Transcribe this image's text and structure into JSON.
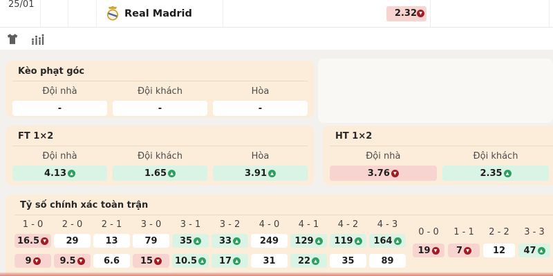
{
  "header": {
    "date": "25/01",
    "team_name": "Real Madrid",
    "odd": {
      "v": "2.32",
      "t": "down"
    }
  },
  "toolbar": {
    "icons": [
      "jersey-icon",
      "stats-chart-icon"
    ]
  },
  "sections": {
    "corner": {
      "title": "Kèo phạt góc",
      "columns": [
        "Đội nhà",
        "Đội khách",
        "Hòa"
      ],
      "cells": [
        {
          "v": "-",
          "t": "flat"
        },
        {
          "v": "-",
          "t": "flat"
        },
        {
          "v": "-",
          "t": "flat"
        }
      ]
    },
    "ft": {
      "title": "FT 1×2",
      "columns": [
        "Đội nhà",
        "Đội khách",
        "Hòa"
      ],
      "cells": [
        {
          "v": "4.13",
          "t": "up"
        },
        {
          "v": "1.65",
          "t": "up"
        },
        {
          "v": "3.91",
          "t": "up"
        }
      ]
    },
    "ht": {
      "title": "HT 1×2",
      "columns": [
        "Đội nhà",
        "Đội khách",
        ""
      ],
      "cells": [
        {
          "v": "3.76",
          "t": "down"
        },
        {
          "v": "2.35",
          "t": "up"
        },
        {
          "v": "",
          "t": "down"
        }
      ]
    },
    "correct_score": {
      "title": "Tỷ số chính xác toàn trận",
      "scores": [
        "1 - 0",
        "2 - 0",
        "2 - 1",
        "3 - 0",
        "3 - 1",
        "3 - 2",
        "4 - 0",
        "4 - 1",
        "4 - 2",
        "4 - 3"
      ],
      "row1": [
        {
          "v": "16.5",
          "t": "down"
        },
        {
          "v": "29",
          "t": "flat"
        },
        {
          "v": "13",
          "t": "flat"
        },
        {
          "v": "79",
          "t": "flat"
        },
        {
          "v": "35",
          "t": "up"
        },
        {
          "v": "33",
          "t": "up"
        },
        {
          "v": "249",
          "t": "flat"
        },
        {
          "v": "129",
          "t": "up"
        },
        {
          "v": "119",
          "t": "up"
        },
        {
          "v": "164",
          "t": "up"
        }
      ],
      "row2": [
        {
          "v": "9",
          "t": "down"
        },
        {
          "v": "9.5",
          "t": "down"
        },
        {
          "v": "6.6",
          "t": "flat"
        },
        {
          "v": "15",
          "t": "down"
        },
        {
          "v": "10.5",
          "t": "up"
        },
        {
          "v": "17",
          "t": "up"
        },
        {
          "v": "31",
          "t": "flat"
        },
        {
          "v": "22",
          "t": "up"
        },
        {
          "v": "35",
          "t": "flat"
        },
        {
          "v": "89",
          "t": "flat"
        }
      ],
      "draw_scores": [
        "0 - 0",
        "1 - 1",
        "2 - 2",
        "3 - 3"
      ],
      "draw_values": [
        {
          "v": "19",
          "t": "down"
        },
        {
          "v": "7",
          "t": "down"
        },
        {
          "v": "12",
          "t": "flat"
        },
        {
          "v": "47",
          "t": "up"
        }
      ]
    }
  },
  "colors": {
    "odds_up_bg": "#d9f3e4",
    "odds_down_bg": "#f8d4d1",
    "odds_flat_bg": "#ffffff",
    "trend_up_icon": "#2f9e60",
    "trend_down_icon": "#a11d24",
    "card_bg": "#fcedda"
  }
}
